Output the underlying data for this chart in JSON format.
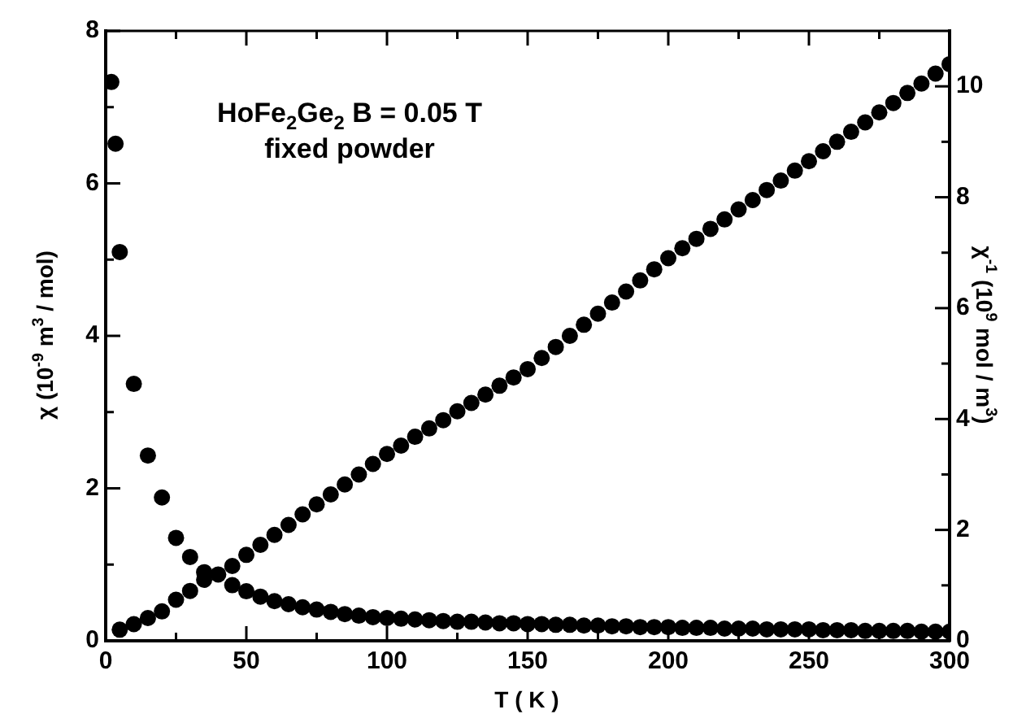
{
  "chart_data": {
    "type": "scatter",
    "xlabel": "T ( K )",
    "ylabel": "χ (10$^{-9}$ m$^{3}$ / mol)",
    "y2label": "χ$^{-1}$ (10$^{9}$ mol / m$^{3}$)",
    "annotations": [
      "HoFe$_{2}$Ge$_{2}$  B = 0.05 T",
      "fixed powder"
    ],
    "x": [
      2,
      3.5,
      5,
      10,
      15,
      20,
      25,
      30,
      35,
      40,
      45,
      50,
      55,
      60,
      65,
      70,
      75,
      80,
      85,
      90,
      95,
      100,
      105,
      110,
      115,
      120,
      125,
      130,
      135,
      140,
      145,
      150,
      155,
      160,
      165,
      170,
      175,
      180,
      185,
      190,
      195,
      200,
      205,
      210,
      215,
      220,
      225,
      230,
      235,
      240,
      245,
      250,
      255,
      260,
      265,
      270,
      275,
      280,
      285,
      290,
      295,
      300
    ],
    "series": [
      {
        "color": "#000000",
        "values": [
          7.33,
          6.52,
          5.1,
          3.37,
          2.43,
          1.88,
          1.35,
          1.1,
          0.9,
          0.87,
          0.73,
          0.65,
          0.58,
          0.52,
          0.48,
          0.44,
          0.41,
          0.38,
          0.35,
          0.33,
          0.31,
          0.3,
          0.29,
          0.28,
          0.27,
          0.26,
          0.25,
          0.25,
          0.24,
          0.23,
          0.23,
          0.22,
          0.22,
          0.21,
          0.21,
          0.2,
          0.2,
          0.19,
          0.19,
          0.18,
          0.18,
          0.18,
          0.17,
          0.17,
          0.17,
          0.16,
          0.16,
          0.16,
          0.15,
          0.15,
          0.15,
          0.15,
          0.14,
          0.14,
          0.14,
          0.13,
          0.13,
          0.13,
          0.13,
          0.12,
          0.12,
          0.12
        ]
      },
      {
        "color": "#000000",
        "axis": "y2",
        "values": [
          null,
          null,
          0.2,
          0.3,
          0.41,
          0.53,
          0.74,
          0.9,
          1.1,
          null,
          1.35,
          1.55,
          1.73,
          1.91,
          2.09,
          2.28,
          2.46,
          2.64,
          2.82,
          3.0,
          3.19,
          3.37,
          3.52,
          3.68,
          3.83,
          3.98,
          4.14,
          4.29,
          4.44,
          4.6,
          4.75,
          4.9,
          5.1,
          5.3,
          5.5,
          5.7,
          5.9,
          6.1,
          6.3,
          6.5,
          6.7,
          6.9,
          7.08,
          7.25,
          7.43,
          7.6,
          7.78,
          7.95,
          8.13,
          8.3,
          8.48,
          8.65,
          8.83,
          9.0,
          9.18,
          9.35,
          9.53,
          9.7,
          9.88,
          10.05,
          10.23,
          10.4
        ]
      }
    ],
    "xlim": [
      0,
      300
    ],
    "xticks": [
      0,
      {
        "value": 25,
        "label": null
      },
      50,
      {
        "value": 75,
        "label": null
      },
      100,
      {
        "value": 125,
        "label": null
      },
      150,
      {
        "value": 175,
        "label": null
      },
      200,
      {
        "value": 225,
        "label": null
      },
      250,
      {
        "value": 275,
        "label": null
      },
      300
    ],
    "ylim": [
      0,
      8
    ],
    "yticks": [
      0,
      {
        "value": 1,
        "label": null
      },
      2,
      {
        "value": 3,
        "label": null
      },
      4,
      {
        "value": 5,
        "label": null
      },
      6,
      {
        "value": 7,
        "label": null
      },
      8
    ],
    "y2lim": [
      0,
      11
    ],
    "y2ticks": [
      0,
      {
        "value": 1,
        "label": null
      },
      2,
      {
        "value": 3,
        "label": null
      },
      4,
      {
        "value": 5,
        "label": null
      },
      6,
      {
        "value": 7,
        "label": null
      },
      8,
      {
        "value": 9,
        "label": null
      },
      10
    ],
    "grid": false,
    "legend": false,
    "marker": "circle"
  }
}
